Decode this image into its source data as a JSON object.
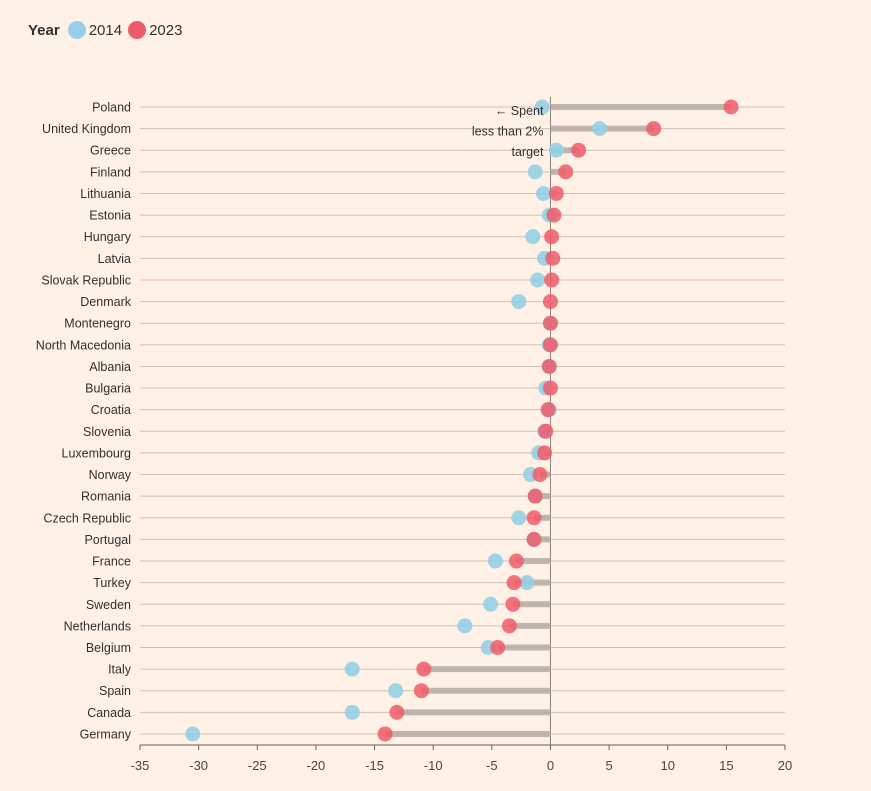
{
  "legend": {
    "title": "Year",
    "items": [
      {
        "label": "2014",
        "color": "#96cfe6"
      },
      {
        "label": "2023",
        "color": "#ef5a6a"
      }
    ]
  },
  "chart_data": {
    "type": "dumbbell",
    "title": "",
    "xlabel": "",
    "ylabel": "",
    "xlim": [
      -35,
      20
    ],
    "xticks": [
      -35,
      -30,
      -25,
      -20,
      -15,
      -10,
      -5,
      0,
      5,
      10,
      15,
      20
    ],
    "grid": true,
    "legend_position": "top-left",
    "annotation": [
      "← Spent",
      "less than 2%",
      "target"
    ],
    "series": [
      {
        "name": "2014",
        "color": "#96cfe6"
      },
      {
        "name": "2023",
        "color": "#ef5a6a"
      }
    ],
    "categories": [
      "Poland",
      "United Kingdom",
      "Greece",
      "Finland",
      "Lithuania",
      "Estonia",
      "Hungary",
      "Latvia",
      "Slovak Republic",
      "Denmark",
      "Montenegro",
      "North Macedonia",
      "Albania",
      "Bulgaria",
      "Croatia",
      "Slovenia",
      "Luxembourg",
      "Norway",
      "Romania",
      "Czech Republic",
      "Portugal",
      "France",
      "Turkey",
      "Sweden",
      "Netherlands",
      "Belgium",
      "Italy",
      "Spain",
      "Canada",
      "Germany"
    ],
    "values_2014": [
      -0.7,
      4.2,
      0.5,
      -1.3,
      -0.6,
      -0.1,
      -1.5,
      -0.5,
      -1.1,
      -2.7,
      0.0,
      -0.1,
      -0.1,
      -0.4,
      -0.1,
      -0.5,
      -1.0,
      -1.7,
      -1.3,
      -2.7,
      -1.4,
      -4.7,
      -2.0,
      -5.1,
      -7.3,
      -5.3,
      -16.9,
      -13.2,
      -16.9,
      -30.5
    ],
    "values_2023": [
      15.4,
      8.8,
      2.4,
      1.3,
      0.5,
      0.3,
      0.1,
      0.2,
      0.1,
      0.0,
      0.0,
      0.0,
      -0.1,
      0.0,
      -0.2,
      -0.4,
      -0.5,
      -0.9,
      -1.3,
      -1.4,
      -1.4,
      -2.9,
      -3.1,
      -3.2,
      -3.5,
      -4.5,
      -10.8,
      -11.0,
      -13.1,
      -14.1
    ]
  }
}
